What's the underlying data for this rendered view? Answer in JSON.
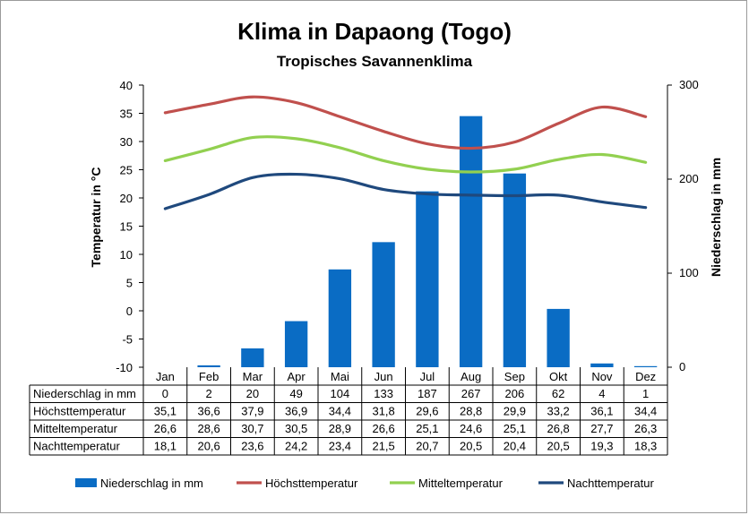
{
  "chart_data": {
    "type": "bar+line",
    "title": "Klima in Dapaong (Togo)",
    "subtitle": "Tropisches Savannenklima",
    "categories": [
      "Jan",
      "Feb",
      "Mar",
      "Apr",
      "Mai",
      "Jun",
      "Jul",
      "Aug",
      "Sep",
      "Okt",
      "Nov",
      "Dez"
    ],
    "y_left": {
      "label": "Temperatur in °C",
      "range": [
        -10,
        40
      ],
      "ticks": [
        "-10",
        "-5",
        "0",
        "5",
        "10",
        "15",
        "20",
        "25",
        "30",
        "35",
        "40"
      ]
    },
    "y_right": {
      "label": "Niederschlag in mm",
      "range": [
        0,
        300
      ],
      "ticks": [
        "0",
        "100",
        "200",
        "300"
      ]
    },
    "bar_series": {
      "name": "Niederschlag in mm",
      "color": "#0a6cc4",
      "values": [
        0,
        2,
        20,
        49,
        104,
        133,
        187,
        267,
        206,
        62,
        4,
        1
      ]
    },
    "line_series": [
      {
        "name": "Höchsttemperatur",
        "color": "#c0504d",
        "values": [
          35.1,
          36.6,
          37.9,
          36.9,
          34.4,
          31.8,
          29.6,
          28.8,
          29.9,
          33.2,
          36.1,
          34.4
        ]
      },
      {
        "name": "Mitteltemperatur",
        "color": "#92d050",
        "values": [
          26.6,
          28.6,
          30.7,
          30.5,
          28.9,
          26.6,
          25.1,
          24.6,
          25.1,
          26.8,
          27.7,
          26.3
        ]
      },
      {
        "name": "Nachttemperatur",
        "color": "#1f497d",
        "values": [
          18.1,
          20.6,
          23.6,
          24.2,
          23.4,
          21.5,
          20.7,
          20.5,
          20.4,
          20.5,
          19.3,
          18.3
        ]
      }
    ],
    "table": {
      "rows": [
        {
          "label": "Niederschlag in mm",
          "values": [
            "0",
            "2",
            "20",
            "49",
            "104",
            "133",
            "187",
            "267",
            "206",
            "62",
            "4",
            "1"
          ]
        },
        {
          "label": "Höchsttemperatur",
          "values": [
            "35,1",
            "36,6",
            "37,9",
            "36,9",
            "34,4",
            "31,8",
            "29,6",
            "28,8",
            "29,9",
            "33,2",
            "36,1",
            "34,4"
          ]
        },
        {
          "label": "Mitteltemperatur",
          "values": [
            "26,6",
            "28,6",
            "30,7",
            "30,5",
            "28,9",
            "26,6",
            "25,1",
            "24,6",
            "25,1",
            "26,8",
            "27,7",
            "26,3"
          ]
        },
        {
          "label": "Nachttemperatur",
          "values": [
            "18,1",
            "20,6",
            "23,6",
            "24,2",
            "23,4",
            "21,5",
            "20,7",
            "20,5",
            "20,4",
            "20,5",
            "19,3",
            "18,3"
          ]
        }
      ]
    },
    "legend": {
      "placement": "bottom",
      "items": [
        {
          "label": "Niederschlag in mm",
          "kind": "bar",
          "color": "#0a6cc4"
        },
        {
          "label": "Höchsttemperatur",
          "kind": "line",
          "color": "#c0504d"
        },
        {
          "label": "Mitteltemperatur",
          "kind": "line",
          "color": "#92d050"
        },
        {
          "label": "Nachttemperatur",
          "kind": "line",
          "color": "#1f497d"
        }
      ]
    },
    "grid": false
  }
}
